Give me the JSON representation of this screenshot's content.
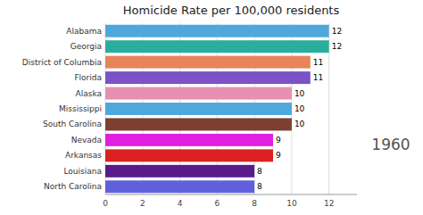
{
  "chart_data": {
    "type": "bar",
    "orientation": "horizontal",
    "title": "Homicide Rate per 100,000 residents",
    "annotations": [
      "1960"
    ],
    "categories": [
      "North Carolina",
      "Louisiana",
      "Arkansas",
      "Nevada",
      "South Carolina",
      "Mississippi",
      "Alaska",
      "Florida",
      "District of Columbia",
      "Georgia",
      "Alabama"
    ],
    "values": [
      8,
      8,
      9,
      9,
      10,
      10,
      10,
      11,
      11,
      12,
      12
    ],
    "colors": [
      "#6060DD",
      "#5B1A8B",
      "#DD2020",
      "#E020E0",
      "#7B4030",
      "#4EA8DE",
      "#E890B0",
      "#7B52C8",
      "#E8845A",
      "#2BAD9E",
      "#4EA8DE"
    ],
    "xlim": [
      0,
      13.5
    ],
    "xticks": [
      0,
      2,
      4,
      6,
      8,
      10,
      12
    ],
    "grid": true,
    "data_labels": true
  }
}
